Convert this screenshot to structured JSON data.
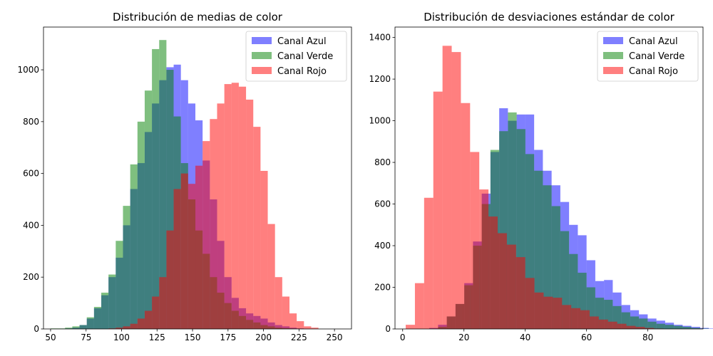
{
  "chart_data": [
    {
      "type": "histogram",
      "title": "Distribución de medias de color",
      "xlabel": "",
      "ylabel": "",
      "xlim": [
        45,
        262
      ],
      "ylim": [
        0,
        1165
      ],
      "xticks": [
        50,
        75,
        100,
        125,
        150,
        175,
        200,
        225,
        250
      ],
      "yticks": [
        0,
        200,
        400,
        600,
        800,
        1000
      ],
      "legend_position": "top-right",
      "series": [
        {
          "name": "Canal Azul",
          "color": "#0000ff",
          "bin_start": 50,
          "bin_width": 5.1,
          "values": [
            0,
            0,
            2,
            5,
            15,
            40,
            80,
            130,
            200,
            275,
            400,
            540,
            640,
            760,
            870,
            960,
            1010,
            1020,
            960,
            870,
            805,
            650,
            500,
            340,
            200,
            120,
            80,
            60,
            50,
            40,
            25,
            15,
            10,
            5,
            2,
            0,
            0,
            0,
            0,
            0
          ]
        },
        {
          "name": "Canal Verde",
          "color": "#008000",
          "bin_start": 50,
          "bin_width": 5.1,
          "values": [
            2,
            2,
            5,
            10,
            15,
            45,
            85,
            140,
            210,
            340,
            475,
            635,
            800,
            920,
            1080,
            1115,
            1000,
            820,
            640,
            500,
            380,
            290,
            200,
            140,
            100,
            70,
            50,
            35,
            25,
            15,
            10,
            5,
            3,
            2,
            1,
            0,
            0,
            0,
            0,
            0
          ]
        },
        {
          "name": "Canal Rojo",
          "color": "#ff0000",
          "bin_start": 50,
          "bin_width": 5.1,
          "values": [
            0,
            0,
            0,
            0,
            0,
            0,
            0,
            0,
            2,
            5,
            10,
            20,
            40,
            70,
            125,
            200,
            380,
            540,
            600,
            560,
            630,
            725,
            810,
            870,
            945,
            950,
            935,
            885,
            780,
            610,
            405,
            200,
            125,
            60,
            30,
            10,
            5,
            0,
            0,
            0
          ]
        }
      ]
    },
    {
      "type": "histogram",
      "title": "Distribución de desviaciones estándar de color",
      "xlabel": "",
      "ylabel": "",
      "xlim": [
        -2.5,
        98
      ],
      "ylim": [
        0,
        1450
      ],
      "xticks": [
        0,
        20,
        40,
        60,
        80
      ],
      "yticks": [
        0,
        200,
        400,
        600,
        800,
        1000,
        1200,
        1400
      ],
      "legend_position": "top-right",
      "series": [
        {
          "name": "Canal Azul",
          "color": "#0000ff",
          "bin_start": 3,
          "bin_width": 2.85,
          "values": [
            0,
            0,
            5,
            20,
            60,
            120,
            220,
            420,
            650,
            850,
            1060,
            1000,
            1030,
            1030,
            860,
            760,
            690,
            610,
            500,
            450,
            330,
            230,
            235,
            175,
            115,
            90,
            70,
            50,
            40,
            30,
            20,
            15,
            10,
            5,
            2,
            0,
            0,
            0,
            0
          ]
        },
        {
          "name": "Canal Verde",
          "color": "#008000",
          "bin_start": 3,
          "bin_width": 2.85,
          "values": [
            0,
            0,
            2,
            10,
            60,
            120,
            210,
            400,
            600,
            860,
            950,
            1040,
            960,
            840,
            760,
            690,
            590,
            470,
            360,
            270,
            200,
            150,
            140,
            110,
            80,
            60,
            50,
            35,
            25,
            20,
            15,
            10,
            5,
            2,
            0,
            0,
            0,
            0,
            0
          ]
        },
        {
          "name": "Canal Rojo",
          "color": "#ff0000",
          "bin_start": 1,
          "bin_width": 3.0,
          "values": [
            20,
            220,
            630,
            1140,
            1360,
            1330,
            1085,
            850,
            670,
            540,
            460,
            405,
            345,
            245,
            175,
            155,
            150,
            115,
            100,
            90,
            60,
            45,
            35,
            25,
            15,
            10,
            5,
            2,
            0
          ]
        }
      ]
    }
  ]
}
